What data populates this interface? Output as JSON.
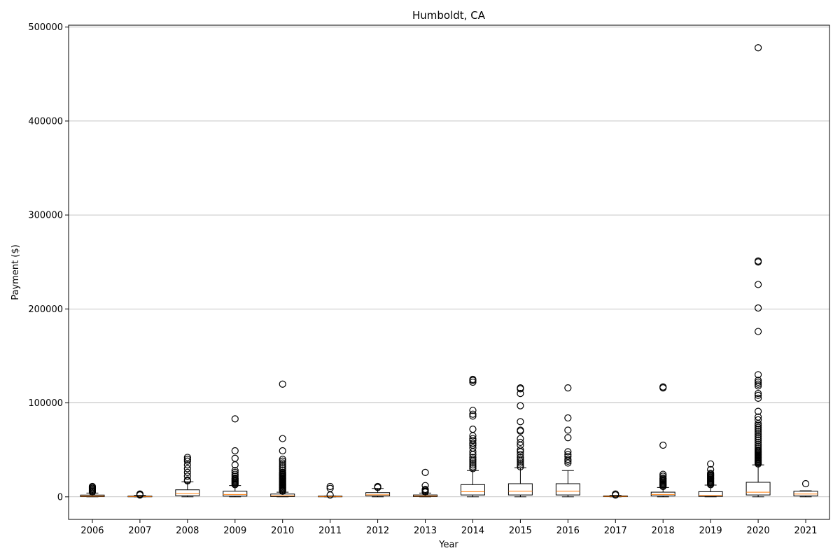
{
  "chart_data": {
    "type": "box",
    "title": "Humboldt, CA",
    "xlabel": "Year",
    "ylabel": "Payment ($)",
    "ylim": [
      -24000,
      502000
    ],
    "yticks": [
      0,
      100000,
      200000,
      300000,
      400000,
      500000
    ],
    "grid": {
      "y": true,
      "x": false
    },
    "colors": {
      "median": "#ff7f0e",
      "box": "#000000",
      "grid": "#b0b0b0"
    },
    "categories": [
      "2006",
      "2007",
      "2008",
      "2009",
      "2010",
      "2011",
      "2012",
      "2013",
      "2014",
      "2015",
      "2016",
      "2017",
      "2018",
      "2019",
      "2020",
      "2021"
    ],
    "boxes": [
      {
        "year": "2006",
        "whisker_low": 0,
        "q1": 200,
        "median": 800,
        "q3": 1900,
        "whisker_high": 4000,
        "outliers": [
          5000,
          6000,
          7000,
          8000,
          9000,
          10000,
          11000
        ]
      },
      {
        "year": "2007",
        "whisker_low": 0,
        "q1": 100,
        "median": 300,
        "q3": 800,
        "whisker_high": 1500,
        "outliers": [
          2000,
          2500,
          3000
        ]
      },
      {
        "year": "2008",
        "whisker_low": 0,
        "q1": 1200,
        "median": 3500,
        "q3": 7500,
        "whisker_high": 16000,
        "outliers": [
          17000,
          18000,
          22000,
          26000,
          30000,
          34000,
          38000,
          40000,
          42000
        ]
      },
      {
        "year": "2009",
        "whisker_low": 0,
        "q1": 800,
        "median": 2500,
        "q3": 6000,
        "whisker_high": 12000,
        "outliers": [
          13000,
          14000,
          15000,
          16000,
          17000,
          18000,
          19000,
          20000,
          22000,
          24000,
          26000,
          28000,
          34000,
          41000,
          49000,
          83000
        ]
      },
      {
        "year": "2010",
        "whisker_low": 0,
        "q1": 300,
        "median": 1200,
        "q3": 3000,
        "whisker_high": 5000,
        "outliers": [
          6000,
          7000,
          8000,
          9000,
          10000,
          11000,
          12000,
          13000,
          14000,
          15000,
          16000,
          17000,
          18000,
          19000,
          20000,
          21000,
          22000,
          23000,
          24000,
          25000,
          26000,
          28000,
          30000,
          32000,
          34000,
          36000,
          38000,
          40000,
          49000,
          62000,
          120000
        ]
      },
      {
        "year": "2011",
        "whisker_low": 0,
        "q1": 100,
        "median": 300,
        "q3": 800,
        "whisker_high": 1000,
        "outliers": [
          2000,
          9000,
          11000
        ]
      },
      {
        "year": "2012",
        "whisker_low": 0,
        "q1": 1000,
        "median": 2200,
        "q3": 4500,
        "whisker_high": 9000,
        "outliers": [
          10000,
          11000
        ]
      },
      {
        "year": "2013",
        "whisker_low": 0,
        "q1": 300,
        "median": 900,
        "q3": 2000,
        "whisker_high": 4000,
        "outliers": [
          5000,
          6000,
          7000,
          8000,
          12000,
          26000
        ]
      },
      {
        "year": "2014",
        "whisker_low": 0,
        "q1": 2000,
        "median": 5500,
        "q3": 13000,
        "whisker_high": 28000,
        "outliers": [
          30000,
          32000,
          34000,
          36000,
          38000,
          40000,
          42000,
          45000,
          48000,
          52000,
          55000,
          57000,
          60000,
          62000,
          65000,
          72000,
          86000,
          88000,
          92000,
          122000,
          124000,
          125000
        ]
      },
      {
        "year": "2015",
        "whisker_low": 0,
        "q1": 2000,
        "median": 6000,
        "q3": 14000,
        "whisker_high": 31000,
        "outliers": [
          32000,
          34000,
          36000,
          38000,
          40000,
          42000,
          45000,
          48000,
          50000,
          55000,
          58000,
          62000,
          70000,
          71000,
          80000,
          97000,
          110000,
          115000,
          116000
        ]
      },
      {
        "year": "2016",
        "whisker_low": 0,
        "q1": 2000,
        "median": 6000,
        "q3": 14000,
        "whisker_high": 28000,
        "outliers": [
          36000,
          38000,
          40000,
          43000,
          45000,
          48000,
          63000,
          71000,
          84000,
          116000
        ]
      },
      {
        "year": "2017",
        "whisker_low": 0,
        "q1": 200,
        "median": 500,
        "q3": 1000,
        "whisker_high": 1500,
        "outliers": [
          2000,
          3000
        ]
      },
      {
        "year": "2018",
        "whisker_low": 0,
        "q1": 1000,
        "median": 2500,
        "q3": 5000,
        "whisker_high": 10000,
        "outliers": [
          11000,
          12000,
          13000,
          14000,
          15000,
          16000,
          17000,
          18000,
          19000,
          20000,
          22000,
          24000,
          55000,
          116000,
          117000
        ]
      },
      {
        "year": "2019",
        "whisker_low": 0,
        "q1": 500,
        "median": 1500,
        "q3": 5500,
        "whisker_high": 12500,
        "outliers": [
          13000,
          14000,
          15000,
          16000,
          17000,
          18000,
          19000,
          20000,
          21000,
          22000,
          23000,
          24000,
          25000,
          29000,
          35000
        ]
      },
      {
        "year": "2020",
        "whisker_low": 0,
        "q1": 2000,
        "median": 5000,
        "q3": 15500,
        "whisker_high": 34000,
        "outliers": [
          35000,
          36000,
          37000,
          38000,
          39000,
          40000,
          41000,
          42000,
          43000,
          44000,
          45000,
          46000,
          47000,
          48000,
          49000,
          50000,
          52000,
          54000,
          56000,
          58000,
          60000,
          62000,
          64000,
          66000,
          68000,
          70000,
          72000,
          74000,
          76000,
          78000,
          82000,
          85000,
          91000,
          105000,
          108000,
          110000,
          118000,
          120000,
          122000,
          124000,
          130000,
          176000,
          201000,
          226000,
          250000,
          251000,
          478000
        ]
      },
      {
        "year": "2021",
        "whisker_low": 0,
        "q1": 1000,
        "median": 3000,
        "q3": 6000,
        "whisker_high": 6500,
        "outliers": [
          14000
        ]
      }
    ]
  }
}
